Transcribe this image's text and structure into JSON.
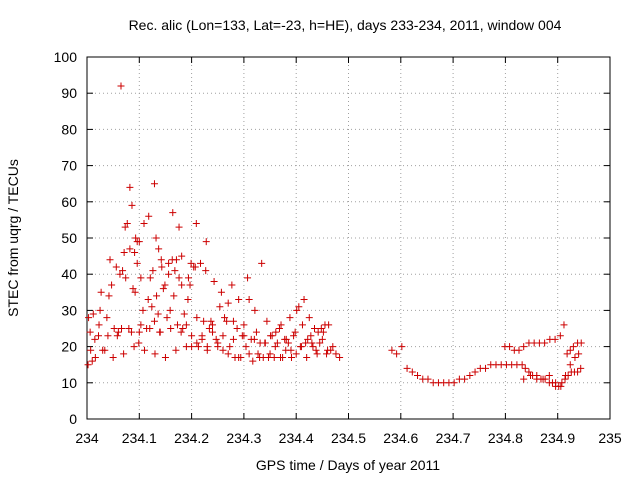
{
  "chart_data": {
    "type": "scatter",
    "title": "Rec. alic (Lon=133, Lat=-23, h=HE), days 233-234, 2011, window 004",
    "xlabel": "GPS time / Days of year 2011",
    "ylabel": "STEC from uqrg / TECUs",
    "xlim": [
      234,
      235
    ],
    "ylim": [
      0,
      100
    ],
    "xticks": [
      234,
      234.1,
      234.2,
      234.3,
      234.4,
      234.5,
      234.6,
      234.7,
      234.8,
      234.9,
      235
    ],
    "xtick_labels": [
      "234",
      "234.1",
      "234.2",
      "234.3",
      "234.4",
      "234.5",
      "234.6",
      "234.7",
      "234.8",
      "234.9",
      "235"
    ],
    "yticks": [
      0,
      10,
      20,
      30,
      40,
      50,
      60,
      70,
      80,
      90,
      100
    ],
    "ytick_labels": [
      "0",
      "10",
      "20",
      "30",
      "40",
      "50",
      "60",
      "70",
      "80",
      "90",
      "100"
    ],
    "grid": true,
    "marker": "+",
    "marker_color": "#cc0000",
    "series": [
      {
        "name": "STEC",
        "x": [
          234.065,
          234.073,
          234.082,
          234.086,
          234.091,
          234.093,
          234.096,
          234.1,
          234.103,
          234.118,
          234.129,
          234.132,
          234.137,
          234.143,
          234.156,
          234.164,
          234.168,
          234.176,
          234.181,
          234.194,
          234.199,
          234.209,
          234.228,
          234.002,
          234.003,
          234.007,
          234.006,
          234.012,
          234.016,
          234.015,
          234.023,
          234.025,
          234.027,
          234.034,
          234.038,
          234.042,
          234.044,
          234.047,
          234.052,
          234.056,
          234.058,
          234.063,
          234.066,
          234.068,
          234.071,
          234.074,
          234.077,
          234.082,
          234.085,
          234.088,
          234.092,
          234.096,
          234.099,
          234.103,
          234.107,
          234.109,
          234.114,
          234.117,
          234.121,
          234.124,
          234.126,
          234.129,
          234.133,
          234.136,
          234.139,
          234.142,
          234.146,
          234.149,
          234.153,
          234.156,
          234.159,
          234.163,
          234.166,
          234.171,
          234.173,
          234.176,
          234.181,
          234.183,
          234.186,
          234.19,
          234.193,
          234.197,
          234.2,
          234.204,
          234.207,
          234.21,
          234.213,
          234.217,
          234.22,
          234.223,
          234.227,
          234.23,
          234.234,
          234.237,
          234.24,
          234.243,
          234.247,
          234.25,
          234.254,
          234.257,
          234.26,
          234.263,
          234.267,
          234.27,
          234.273,
          234.277,
          234.28,
          234.283,
          234.287,
          234.29,
          234.294,
          234.297,
          234.3,
          234.304,
          234.307,
          234.31,
          234.314,
          234.317,
          234.321,
          234.324,
          234.327,
          234.331,
          234.334,
          234.337,
          234.341,
          234.344,
          234.347,
          234.351,
          234.354,
          234.358,
          234.361,
          234.364,
          234.368,
          234.371,
          234.374,
          234.378,
          234.381,
          234.385,
          234.388,
          234.391,
          234.395,
          234.398,
          234.401,
          234.405,
          234.408,
          234.412,
          234.415,
          234.418,
          234.422,
          234.425,
          234.428,
          234.432,
          234.435,
          234.438,
          234.442,
          234.445,
          234.448,
          234.452,
          234.455,
          234.458,
          234.462,
          234.466,
          234.47,
          234.476,
          234.483,
          234.01,
          234.03,
          234.05,
          234.07,
          234.09,
          234.11,
          234.13,
          234.15,
          234.17,
          234.19,
          234.21,
          234.23,
          234.25,
          234.27,
          234.29,
          234.31,
          234.33,
          234.35,
          234.37,
          234.39,
          234.41,
          234.43,
          234.45,
          234.022,
          234.04,
          234.06,
          234.08,
          234.1,
          234.12,
          234.14,
          234.16,
          234.18,
          234.2,
          234.22,
          234.24,
          234.26,
          234.28,
          234.3,
          234.32,
          234.34,
          234.36,
          234.38,
          234.4,
          234.42,
          234.44,
          234.46,
          234.583,
          234.592,
          234.602,
          234.612,
          234.622,
          234.632,
          234.642,
          234.652,
          234.662,
          234.672,
          234.682,
          234.692,
          234.702,
          234.712,
          234.722,
          234.732,
          234.742,
          234.752,
          234.762,
          234.772,
          234.782,
          234.792,
          234.802,
          234.812,
          234.822,
          234.832,
          234.838,
          234.845,
          234.852,
          234.86,
          234.868,
          234.876,
          234.884,
          234.89,
          234.896,
          234.902,
          234.908,
          234.914,
          234.92,
          234.926,
          234.932,
          234.938,
          234.944,
          234.799,
          234.808,
          234.817,
          234.826,
          234.835,
          234.845,
          234.855,
          234.865,
          234.875,
          234.885,
          234.895,
          234.905,
          234.912,
          234.918,
          234.924,
          234.93,
          234.938,
          234.945,
          234.835,
          234.848,
          234.86,
          234.872,
          234.884,
          234.896,
          234.906,
          234.915,
          234.924,
          234.933,
          234.94
        ],
        "y": [
          92,
          53,
          64,
          59,
          46,
          50,
          43,
          49,
          39,
          56,
          65,
          50,
          47,
          42,
          43,
          57,
          41,
          53,
          45,
          39,
          43,
          54,
          49,
          15,
          28,
          19,
          24,
          29,
          17,
          22,
          26,
          30,
          35,
          19,
          28,
          34,
          44,
          37,
          25,
          42,
          23,
          40,
          25,
          41,
          46,
          39,
          54,
          47,
          24,
          36,
          35,
          49,
          21,
          26,
          30,
          54,
          25,
          33,
          39,
          31,
          41,
          27,
          34,
          29,
          24,
          44,
          36,
          37,
          28,
          40,
          30,
          44,
          34,
          44,
          26,
          39,
          37,
          25,
          29,
          26,
          33,
          37,
          20,
          42,
          42,
          28,
          20,
          43,
          23,
          27,
          41,
          20,
          25,
          27,
          26,
          38,
          22,
          21,
          31,
          35,
          19,
          28,
          27,
          32,
          20,
          37,
          27,
          17,
          25,
          33,
          17,
          23,
          26,
          20,
          39,
          33,
          22,
          16,
          30,
          24,
          18,
          21,
          43,
          17,
          21,
          27,
          17,
          23,
          23,
          17,
          24,
          21,
          25,
          26,
          17,
          22,
          22,
          21,
          28,
          17,
          23,
          24,
          30,
          31,
          20,
          26,
          33,
          21,
          22,
          28,
          23,
          20,
          25,
          19,
          24,
          21,
          25,
          24,
          26,
          18,
          26,
          19,
          20,
          18,
          17,
          16,
          19,
          17,
          18,
          20,
          19,
          18,
          17,
          19,
          20,
          21,
          19,
          20,
          18,
          17,
          18,
          17,
          18,
          17,
          19,
          20,
          21,
          22,
          23,
          23,
          24,
          25,
          24,
          25,
          24,
          25,
          24,
          23,
          22,
          24,
          23,
          22,
          23,
          22,
          21,
          20,
          19,
          18,
          17,
          18,
          19,
          19,
          18,
          20,
          14,
          13,
          12,
          11,
          11,
          10,
          10,
          10,
          10,
          10,
          11,
          11,
          12,
          13,
          14,
          14,
          15,
          15,
          15,
          15,
          15,
          15,
          15,
          14,
          13,
          12,
          11,
          11,
          11,
          10,
          10,
          9,
          9,
          10,
          11,
          12,
          13,
          13,
          13,
          14,
          20,
          20,
          19,
          19,
          20,
          21,
          21,
          21,
          21,
          22,
          22,
          23,
          26,
          18,
          19,
          20,
          21,
          21,
          11,
          12,
          12,
          11,
          12,
          10,
          9,
          12,
          15,
          17,
          18
        ]
      }
    ]
  }
}
